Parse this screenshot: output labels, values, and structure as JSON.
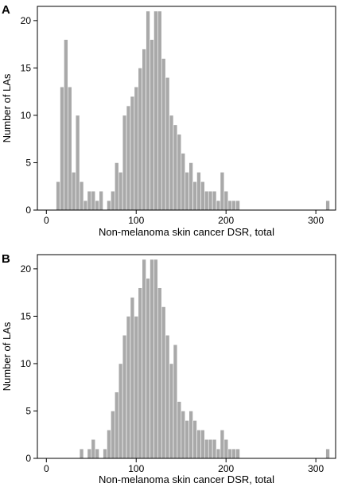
{
  "chart_data": [
    {
      "panel": "A",
      "type": "bar",
      "xlabel": "Non-melanoma skin cancer DSR, total",
      "ylabel": "Number of LAs",
      "xlim": [
        -10,
        322
      ],
      "ylim": [
        0,
        21.5
      ],
      "xticks": [
        0,
        100,
        200,
        300
      ],
      "yticks": [
        0,
        5,
        10,
        15,
        20
      ],
      "bin_width": 4.35,
      "bins_start": [
        10.9,
        15.25,
        19.6,
        23.95,
        28.3,
        32.65,
        37.0,
        41.35,
        45.7,
        50.05,
        54.4,
        58.75,
        63.1,
        67.45,
        71.8,
        76.15,
        80.5,
        84.85,
        89.2,
        93.55,
        97.9,
        102.25,
        106.6,
        110.95,
        115.3,
        119.65,
        124.0,
        128.35,
        132.7,
        137.05,
        141.4,
        145.75,
        150.1,
        154.45,
        158.8,
        163.15,
        167.5,
        171.85,
        176.2,
        180.55,
        184.9,
        189.25,
        193.6,
        197.95,
        202.3,
        206.65,
        211.0,
        215.35,
        219.7,
        224.05,
        228.4,
        232.75,
        237.1,
        241.45,
        245.8,
        250.15,
        254.5,
        258.85,
        263.2,
        267.55,
        271.9,
        276.25,
        280.6,
        284.95,
        289.3,
        293.65,
        298.0,
        302.35,
        306.7,
        311.05
      ],
      "values": [
        3,
        13,
        18,
        13,
        4,
        10,
        3,
        1,
        2,
        2,
        1,
        2,
        0,
        1,
        2,
        5,
        4,
        10,
        11,
        12,
        13,
        15,
        17,
        21,
        18,
        21,
        21,
        16,
        14,
        10,
        9,
        8,
        6,
        4,
        5,
        3,
        4,
        3,
        2,
        2,
        2,
        1,
        4,
        2,
        1,
        1,
        1,
        0,
        0,
        0,
        0,
        0,
        0,
        0,
        0,
        0,
        0,
        0,
        0,
        0,
        0,
        0,
        0,
        0,
        0,
        0,
        0,
        0,
        0,
        1
      ]
    },
    {
      "panel": "B",
      "type": "bar",
      "xlabel": "Non-melanoma skin cancer DSR, total",
      "ylabel": "Number of LAs",
      "xlim": [
        -10,
        322
      ],
      "ylim": [
        0,
        21.5
      ],
      "xticks": [
        0,
        100,
        200,
        300
      ],
      "yticks": [
        0,
        5,
        10,
        15,
        20
      ],
      "bin_width": 4.35,
      "bins_start": [
        37.0,
        41.35,
        45.7,
        50.05,
        54.4,
        58.75,
        63.1,
        67.45,
        71.8,
        76.15,
        80.5,
        84.85,
        89.2,
        93.55,
        97.9,
        102.25,
        106.6,
        110.95,
        115.3,
        119.65,
        124.0,
        128.35,
        132.7,
        137.05,
        141.4,
        145.75,
        150.1,
        154.45,
        158.8,
        163.15,
        167.5,
        171.85,
        176.2,
        180.55,
        184.9,
        189.25,
        193.6,
        197.95,
        202.3,
        206.65,
        211.0,
        215.35,
        219.7,
        224.05,
        228.4,
        232.75,
        237.1,
        241.45,
        245.8,
        250.15,
        254.5,
        258.85,
        263.2,
        267.55,
        271.9,
        276.25,
        280.6,
        284.95,
        289.3,
        293.65,
        298.0,
        302.35,
        306.7,
        311.05
      ],
      "values": [
        1,
        0,
        1,
        2,
        1,
        0,
        1,
        3,
        5,
        7,
        10,
        13,
        15,
        17,
        15,
        18,
        21,
        19,
        21,
        21,
        18,
        16,
        13,
        10,
        12,
        6,
        5,
        4,
        5,
        4,
        3,
        3,
        2,
        2,
        2,
        1,
        3,
        2,
        1,
        1,
        1,
        0,
        0,
        0,
        0,
        0,
        0,
        0,
        0,
        0,
        0,
        0,
        0,
        0,
        0,
        0,
        0,
        0,
        0,
        0,
        0,
        0,
        0,
        1
      ]
    }
  ],
  "colors": {
    "bar": "#a9a9a9",
    "frame": "#000000"
  }
}
